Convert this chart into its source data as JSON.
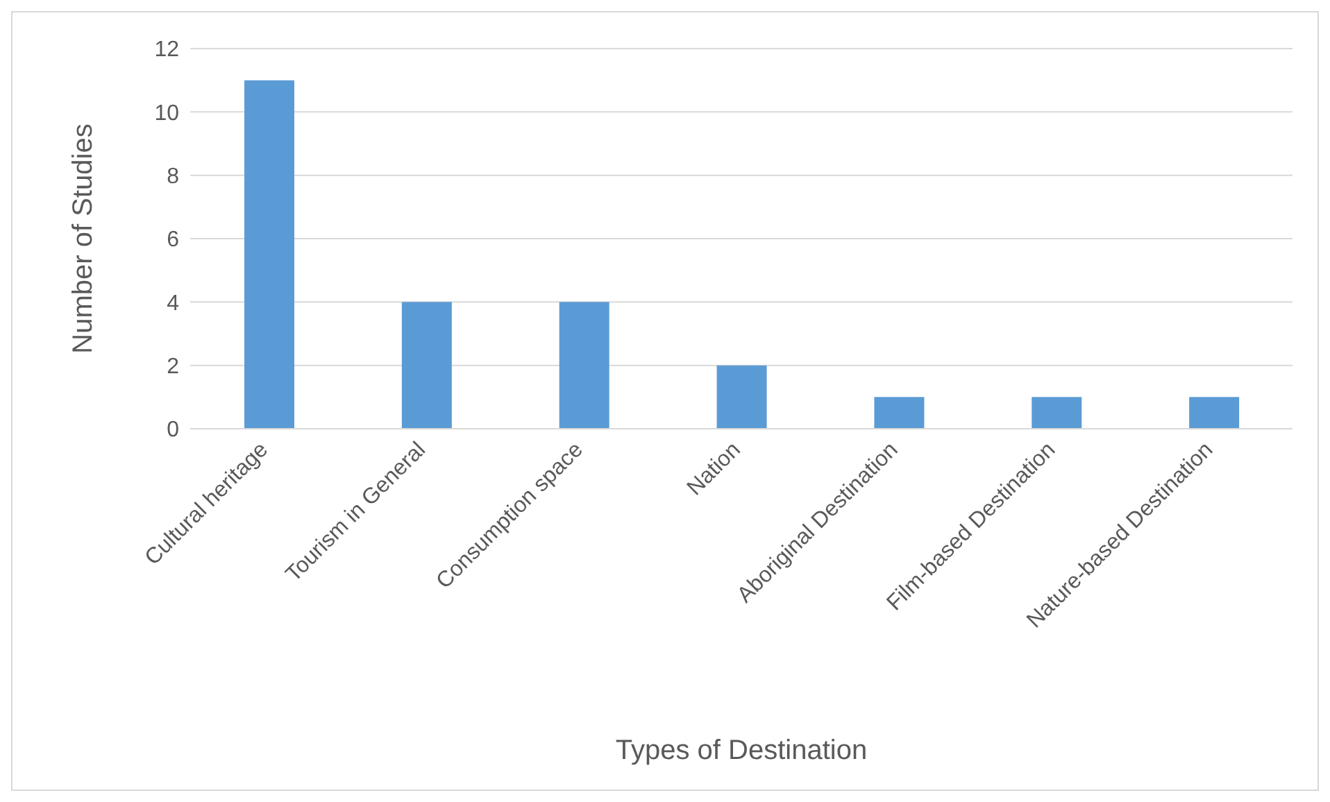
{
  "chart_data": {
    "type": "bar",
    "xlabel": "Types of Destination",
    "ylabel": "Number of Studies",
    "categories": [
      "Cultural heritage",
      "Tourism in General",
      "Consumption space",
      "Nation",
      "Aboriginal Destination",
      "Film-based Destination",
      "Nature-based Destination"
    ],
    "values": [
      11,
      4,
      4,
      2,
      1,
      1,
      1
    ],
    "color": "#5b9bd5",
    "ylim": [
      0,
      12
    ],
    "yticks": [
      0,
      2,
      4,
      6,
      8,
      10,
      12
    ],
    "grid": "y"
  }
}
